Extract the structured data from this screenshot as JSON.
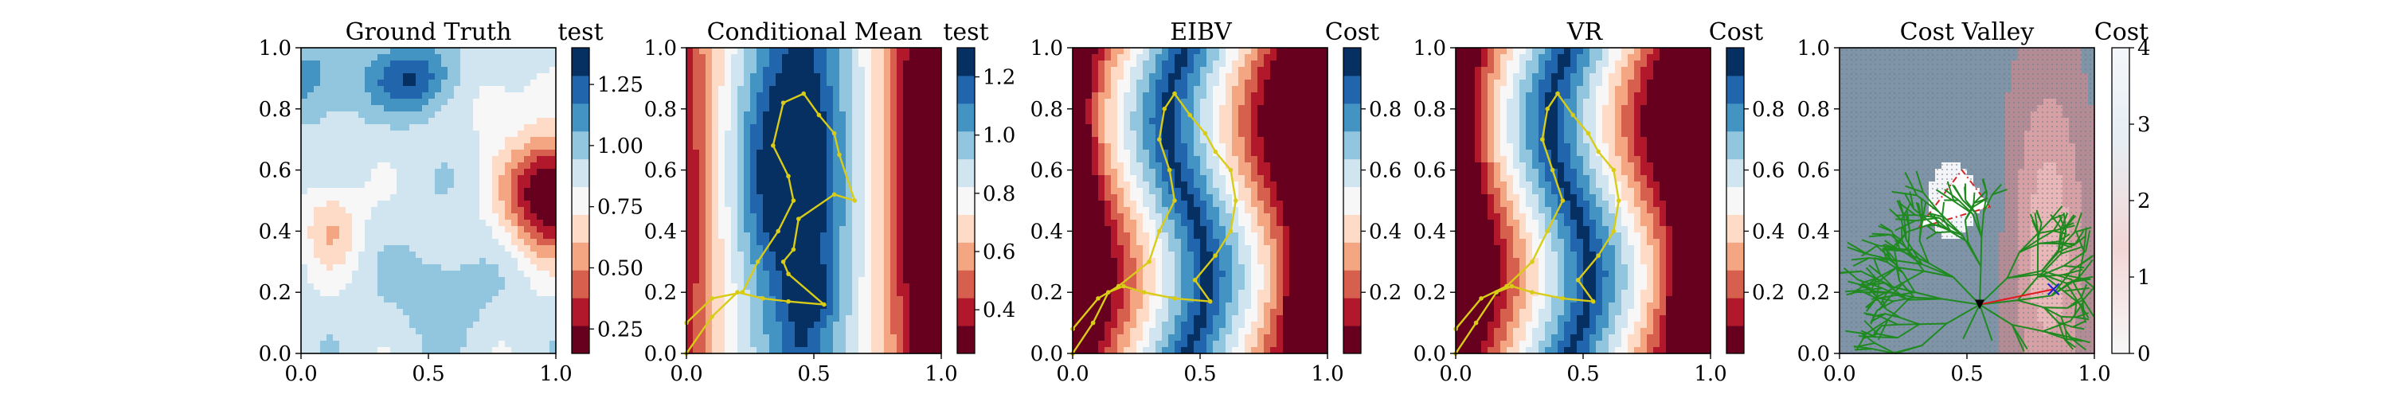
{
  "colors": {
    "rdbu_levels": [
      "#67001f",
      "#b2182b",
      "#d6604d",
      "#f4a582",
      "#fddbc7",
      "#f7f7f7",
      "#d1e5f0",
      "#92c5de",
      "#4393c3",
      "#2166ac",
      "#053061"
    ],
    "path_line": "#d8cc17",
    "tree_green": "#1f8a1f",
    "obstacle_outline": "#d62728",
    "robot_marker": "#000000",
    "target_marker": "#1f1fd6",
    "branch_red": "#e31a1c"
  },
  "chart_data": [
    {
      "type": "heatmap",
      "title": "Ground Truth",
      "colorbar_label": "test",
      "xlim": [
        0,
        1
      ],
      "ylim": [
        0,
        1
      ],
      "xticks": [
        "0.0",
        "0.5",
        "1.0"
      ],
      "yticks": [
        "0.0",
        "0.2",
        "0.4",
        "0.6",
        "0.8",
        "1.0"
      ],
      "colorbar": {
        "min": 0.15,
        "max": 1.4,
        "ticks": [
          "0.25",
          "0.50",
          "0.75",
          "1.00",
          "1.25"
        ],
        "tick_values": [
          0.25,
          0.5,
          0.75,
          1.0,
          1.25
        ]
      },
      "colormap": "RdBu"
    },
    {
      "type": "heatmap",
      "title": "Conditional Mean",
      "colorbar_label": "test",
      "xlim": [
        0,
        1
      ],
      "ylim": [
        0,
        1
      ],
      "xticks": [
        "0.0",
        "0.5",
        "1.0"
      ],
      "yticks": [
        "0.0",
        "0.2",
        "0.4",
        "0.6",
        "0.8",
        "1.0"
      ],
      "colorbar": {
        "min": 0.25,
        "max": 1.3,
        "ticks": [
          "0.4",
          "0.6",
          "0.8",
          "1.0",
          "1.2"
        ],
        "tick_values": [
          0.4,
          0.6,
          0.8,
          1.0,
          1.2
        ]
      },
      "colormap": "RdBu",
      "path": {
        "x": [
          0.0,
          0.1,
          0.2,
          0.3,
          0.4,
          0.54,
          0.4,
          0.38,
          0.42,
          0.44,
          0.58,
          0.66,
          0.6,
          0.58,
          0.52,
          0.46,
          0.38,
          0.34,
          0.4,
          0.42,
          0.36,
          0.28,
          0.22,
          0.1,
          0.0
        ],
        "y": [
          0.0,
          0.12,
          0.2,
          0.18,
          0.17,
          0.16,
          0.26,
          0.3,
          0.34,
          0.44,
          0.52,
          0.5,
          0.65,
          0.72,
          0.78,
          0.85,
          0.82,
          0.68,
          0.58,
          0.5,
          0.4,
          0.3,
          0.2,
          0.18,
          0.1
        ]
      }
    },
    {
      "type": "heatmap",
      "title": "EIBV",
      "colorbar_label": "Cost",
      "xlim": [
        0,
        1
      ],
      "ylim": [
        0,
        1
      ],
      "xticks": [
        "0.0",
        "0.5",
        "1.0"
      ],
      "yticks": [
        "0.0",
        "0.2",
        "0.4",
        "0.6",
        "0.8",
        "1.0"
      ],
      "colorbar": {
        "min": 0.0,
        "max": 1.0,
        "ticks": [
          "0.2",
          "0.4",
          "0.6",
          "0.8"
        ],
        "tick_values": [
          0.2,
          0.4,
          0.6,
          0.8
        ]
      },
      "colormap": "RdBu",
      "path": {
        "x": [
          0.0,
          0.08,
          0.14,
          0.2,
          0.28,
          0.4,
          0.54,
          0.48,
          0.56,
          0.62,
          0.64,
          0.62,
          0.56,
          0.52,
          0.46,
          0.4,
          0.36,
          0.34,
          0.38,
          0.4,
          0.34,
          0.3,
          0.18,
          0.1,
          0.0
        ],
        "y": [
          0.0,
          0.1,
          0.2,
          0.22,
          0.2,
          0.18,
          0.17,
          0.24,
          0.32,
          0.4,
          0.5,
          0.6,
          0.66,
          0.72,
          0.78,
          0.85,
          0.8,
          0.7,
          0.6,
          0.5,
          0.4,
          0.3,
          0.22,
          0.18,
          0.08
        ]
      }
    },
    {
      "type": "heatmap",
      "title": "VR",
      "colorbar_label": "Cost",
      "xlim": [
        0,
        1
      ],
      "ylim": [
        0,
        1
      ],
      "xticks": [
        "0.0",
        "0.5",
        "1.0"
      ],
      "yticks": [
        "0.0",
        "0.2",
        "0.4",
        "0.6",
        "0.8",
        "1.0"
      ],
      "colorbar": {
        "min": 0.0,
        "max": 1.0,
        "ticks": [
          "0.2",
          "0.4",
          "0.6",
          "0.8"
        ],
        "tick_values": [
          0.2,
          0.4,
          0.6,
          0.8
        ]
      },
      "colormap": "RdBu",
      "path": {
        "x": [
          0.0,
          0.08,
          0.16,
          0.22,
          0.3,
          0.42,
          0.54,
          0.48,
          0.56,
          0.62,
          0.64,
          0.62,
          0.56,
          0.52,
          0.46,
          0.4,
          0.36,
          0.34,
          0.38,
          0.42,
          0.36,
          0.3,
          0.2,
          0.1,
          0.0
        ],
        "y": [
          0.0,
          0.1,
          0.2,
          0.22,
          0.2,
          0.18,
          0.17,
          0.24,
          0.32,
          0.4,
          0.5,
          0.6,
          0.66,
          0.72,
          0.78,
          0.85,
          0.8,
          0.7,
          0.6,
          0.5,
          0.4,
          0.3,
          0.22,
          0.18,
          0.08
        ]
      }
    },
    {
      "type": "heatmap",
      "title": "Cost Valley",
      "colorbar_label": "Cost",
      "xlim": [
        0,
        1
      ],
      "ylim": [
        0,
        1
      ],
      "xticks": [
        "0.0",
        "0.5",
        "1.0"
      ],
      "yticks": [
        "0.0",
        "0.2",
        "0.4",
        "0.6",
        "0.8",
        "1.0"
      ],
      "colorbar": {
        "min": 0.0,
        "max": 4.0,
        "ticks": [
          "0",
          "1",
          "2",
          "3",
          "4"
        ],
        "tick_values": [
          0,
          1,
          2,
          3,
          4
        ]
      },
      "colormap": "RdBu",
      "obstacle": {
        "x": [
          0.31,
          0.48,
          0.59,
          0.31
        ],
        "y": [
          0.41,
          0.6,
          0.48,
          0.41
        ]
      },
      "robot": {
        "x": 0.55,
        "y": 0.16
      },
      "target": {
        "x": 0.84,
        "y": 0.21
      }
    }
  ]
}
